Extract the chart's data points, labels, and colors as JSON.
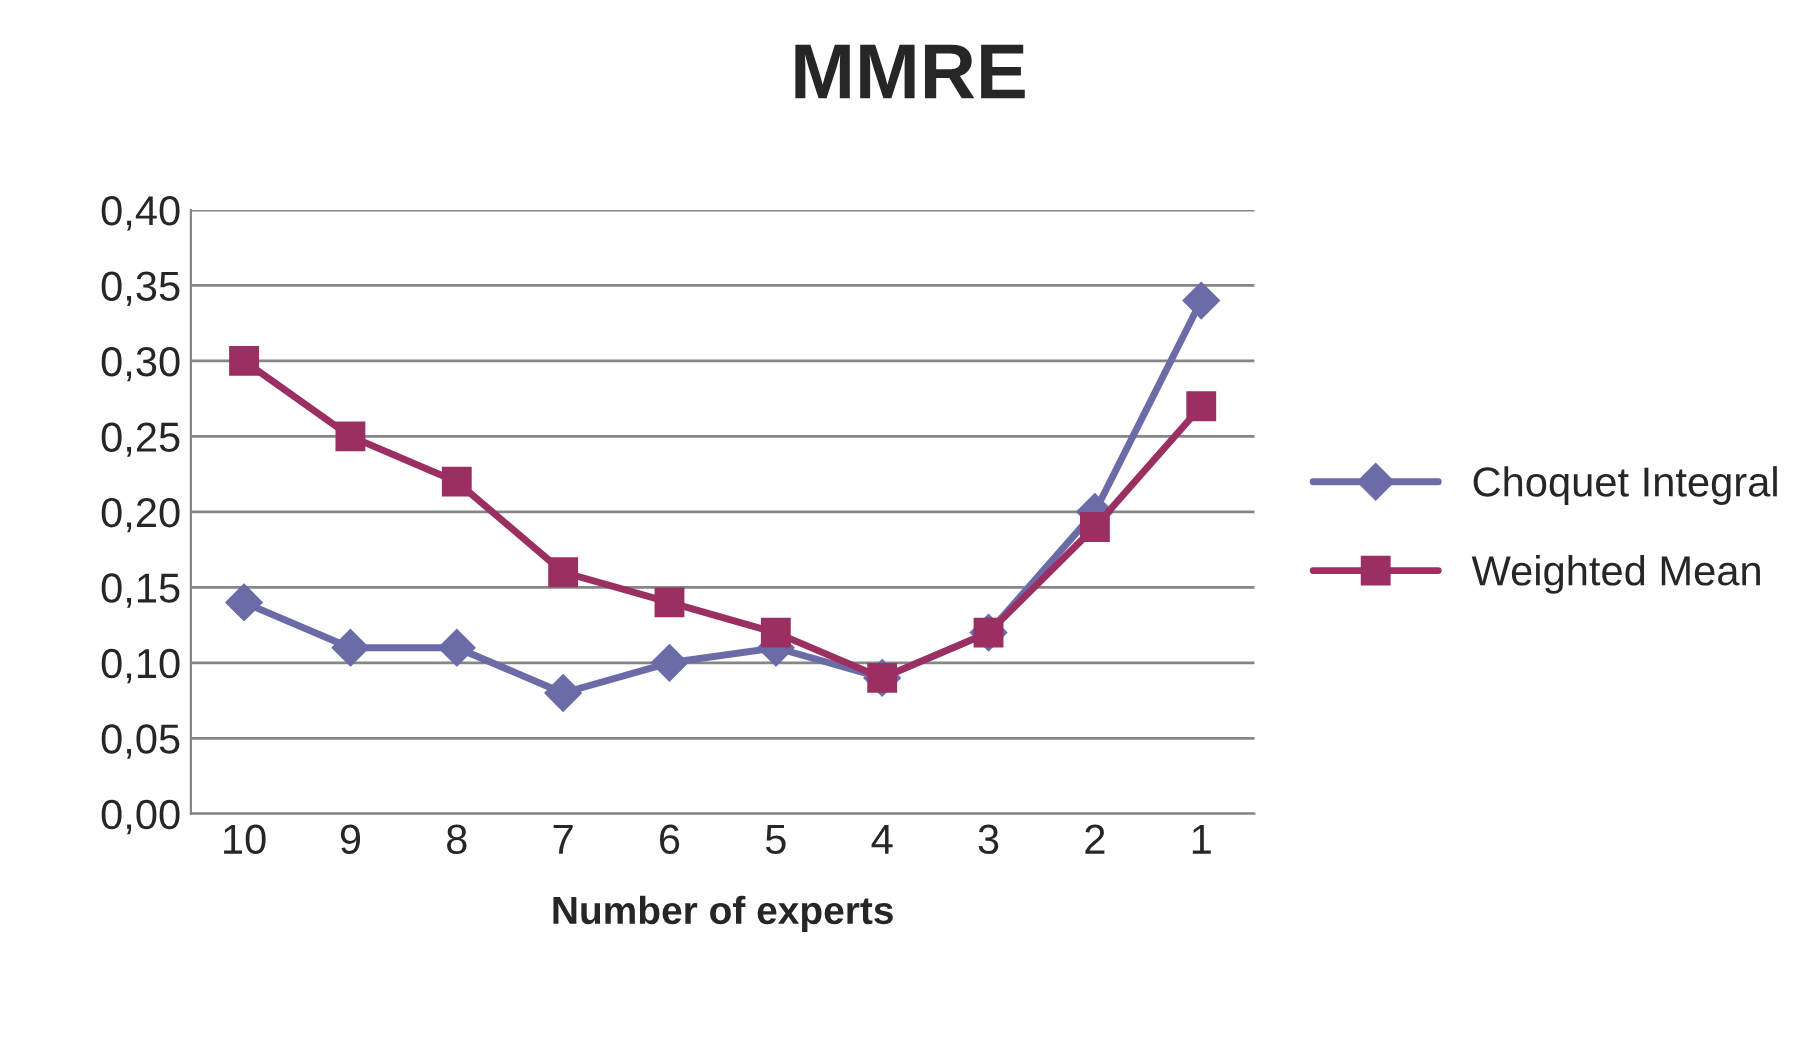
{
  "chart_data": {
    "type": "line",
    "title": "MMRE",
    "xlabel": "Number of experts",
    "categories": [
      "10",
      "9",
      "8",
      "7",
      "6",
      "5",
      "4",
      "3",
      "2",
      "1"
    ],
    "series": [
      {
        "name": "Choquet Integral",
        "color": "#6b6ba8",
        "marker": "diamond",
        "values": [
          0.14,
          0.11,
          0.11,
          0.08,
          0.1,
          0.11,
          0.09,
          0.12,
          0.2,
          0.34
        ]
      },
      {
        "name": "Weighted Mean",
        "color": "#9b2f62",
        "marker": "square",
        "values": [
          0.3,
          0.25,
          0.22,
          0.16,
          0.14,
          0.12,
          0.09,
          0.12,
          0.19,
          0.27
        ]
      }
    ],
    "ylim": [
      0,
      0.4
    ],
    "yticks": [
      {
        "value": 0,
        "label": "0,00"
      },
      {
        "value": 0.05,
        "label": "0,05"
      },
      {
        "value": 0.1,
        "label": "0,10"
      },
      {
        "value": 0.15,
        "label": "0,15"
      },
      {
        "value": 0.2,
        "label": "0,20"
      },
      {
        "value": 0.25,
        "label": "0,25"
      },
      {
        "value": 0.3,
        "label": "0,30"
      },
      {
        "value": 0.35,
        "label": "0,35"
      },
      {
        "value": 0.4,
        "label": "0,40"
      }
    ],
    "grid": "y",
    "legend": "right",
    "line_style": "solid"
  }
}
